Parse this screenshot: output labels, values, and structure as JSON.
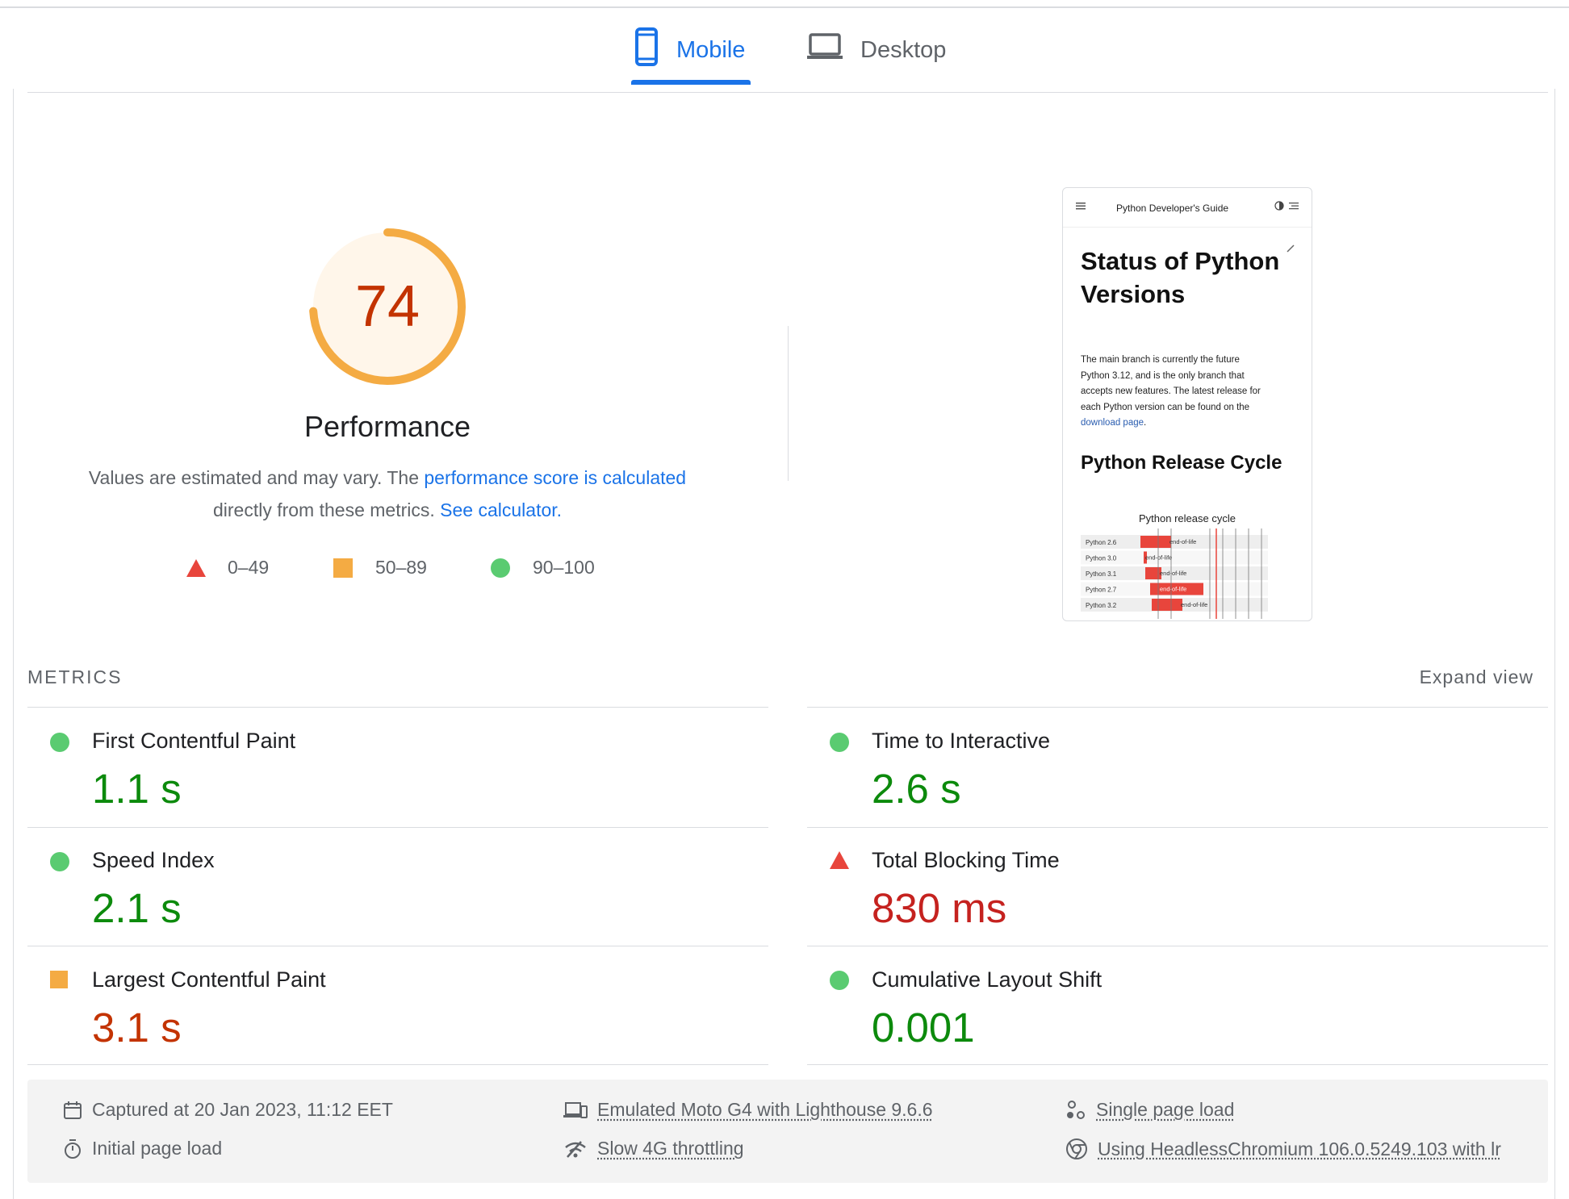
{
  "tabs": [
    {
      "label": "Mobile",
      "icon": "smartphone-icon",
      "active": true
    },
    {
      "label": "Desktop",
      "icon": "laptop-icon",
      "active": false
    }
  ],
  "performance": {
    "score": "74",
    "title": "Performance",
    "desc_prefix": "Values are estimated and may vary. The ",
    "desc_link": "performance score is calculated",
    "desc_mid": "directly from these metrics. ",
    "desc_link2": "See calculator."
  },
  "legend": [
    {
      "range": "0–49",
      "shape": "triangle",
      "color": "#e8453c"
    },
    {
      "range": "50–89",
      "shape": "square",
      "color": "#f4ab43"
    },
    {
      "range": "90–100",
      "shape": "circle",
      "color": "#5acb71"
    }
  ],
  "screenshot": {
    "site_title": "Python Developer's Guide",
    "heading": "Status of Python Versions",
    "para_lines": [
      "The main branch is currently the future",
      "Python 3.12, and is the only branch that",
      "accepts new features. The latest release for",
      "each Python version can be found on the"
    ],
    "link": "download page",
    "heading2": "Python Release Cycle",
    "chart_title": "Python release cycle",
    "rows": [
      "Python 2.6",
      "Python 3.0",
      "Python 3.1",
      "Python 2.7",
      "Python 3.2"
    ],
    "bar_label": "end-of-life"
  },
  "metrics_header": {
    "label": "METRICS",
    "expand": "Expand view"
  },
  "metrics": [
    {
      "name": "First Contentful Paint",
      "value": "1.1 s",
      "rating": "good"
    },
    {
      "name": "Time to Interactive",
      "value": "2.6 s",
      "rating": "good"
    },
    {
      "name": "Speed Index",
      "value": "2.1 s",
      "rating": "good"
    },
    {
      "name": "Total Blocking Time",
      "value": "830 ms",
      "rating": "poor"
    },
    {
      "name": "Largest Contentful Paint",
      "value": "3.1 s",
      "rating": "average"
    },
    {
      "name": "Cumulative Layout Shift",
      "value": "0.001",
      "rating": "good"
    }
  ],
  "footer": {
    "captured": "Captured at 20 Jan 2023, 11:12 EET",
    "initial": "Initial page load",
    "device": "Emulated Moto G4 with Lighthouse 9.6.6",
    "throttling": "Slow 4G throttling",
    "single": "Single page load",
    "browser": "Using HeadlessChromium 106.0.5249.103 with lr"
  },
  "colors": {
    "accent": "#1a73e8",
    "good": "#0c8a0c",
    "poor": "#c5221f",
    "average": "#c33300",
    "gauge": "#f4ab43"
  }
}
